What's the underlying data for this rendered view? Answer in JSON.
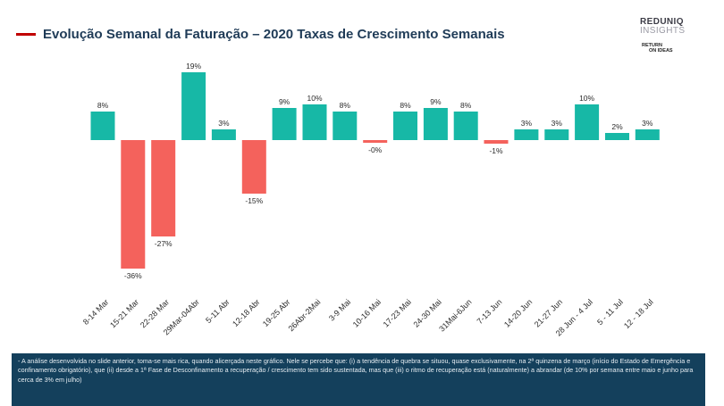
{
  "header": {
    "title": "Evolução Semanal da Faturação – 2020 Taxas de Crescimento Semanais",
    "title_color": "#1f3b57",
    "accent_color": "#c00000"
  },
  "logo": {
    "brand_line1": "REDUNIQ",
    "brand_line2": "INSIGHTS",
    "secondary_line1": "RETURN",
    "secondary_line2": "ON IDEAS"
  },
  "colors": {
    "positive": "#17b8a6",
    "negative": "#f4625c",
    "note_background": "#14405c"
  },
  "chart_data": {
    "type": "bar",
    "categories": [
      "8-14 Mar",
      "15-21 Mar",
      "22-28 Mar",
      "29Mar-04Abr",
      "5-11 Abr",
      "12-18 Abr",
      "19-25 Abr",
      "26Abr-2Mai",
      "3-9 Mai",
      "10-16 Mai",
      "17-23 Mai",
      "24-30 Mai",
      "31Mai-6Jun",
      "7-13 Jun",
      "14-20 Jun",
      "21-27 Jun",
      "28 Jun - 4 Jul",
      "5 - 11 Jul",
      "12 - 18 Jul"
    ],
    "values": [
      8,
      -36,
      -27,
      19,
      3,
      -15,
      9,
      10,
      8,
      -0.4,
      8,
      9,
      8,
      -1,
      3,
      3,
      10,
      2,
      3
    ],
    "value_labels": [
      "8%",
      "-36%",
      "-27%",
      "19%",
      "3%",
      "-15%",
      "9%",
      "10%",
      "8%",
      "-0%",
      "8%",
      "9%",
      "8%",
      "-1%",
      "3%",
      "3%",
      "10%",
      "2%",
      "3%"
    ],
    "unit": "%",
    "ylim": [
      -36,
      19
    ],
    "grid": false,
    "legend": "none"
  },
  "note": {
    "text": "- A análise desenvolvida no slide anterior, toma-se mais rica, quando alicerçada neste gráfico. Nele se percebe que: (i) a tendência de quebra se situou, quase exclusivamente, na 2ª quinzena de março (início do Estado de Emergência e confinamento obrigatório), que (ii) desde a 1ª Fase de Desconfinamento a recuperação / crescimento tem sido sustentada, mas que (iii) o ritmo de recuperação está (naturalmente) a abrandar (de 10% por semana entre maio e junho para cerca de 3% em julho)"
  }
}
